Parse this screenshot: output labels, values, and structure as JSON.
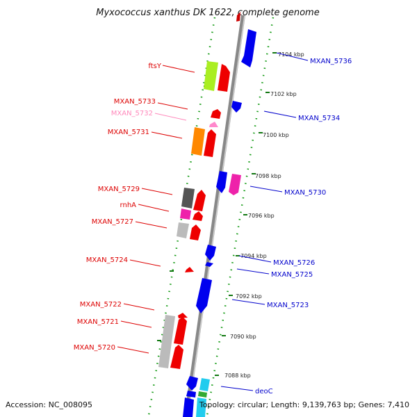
{
  "title": "Myxococcus xanthus DK 1622, complete genome",
  "footer": {
    "accession": "Accession: NC_008095",
    "summary": "Topology: circular; Length: 9,139,763 bp; Genes: 7,410"
  },
  "scale_labels": [
    "7104 kbp",
    "7102 kbp",
    "7100 kbp",
    "7098 kbp",
    "7096 kbp",
    "7094 kbp",
    "7092 kbp",
    "7090 kbp",
    "7088 kbp"
  ],
  "left_genes": [
    {
      "label": "ftsY",
      "color": "#dd0000"
    },
    {
      "label": "MXAN_5733",
      "color": "#dd0000"
    },
    {
      "label": "MXAN_5732",
      "color": "#ff88bb"
    },
    {
      "label": "MXAN_5731",
      "color": "#dd0000"
    },
    {
      "label": "MXAN_5729",
      "color": "#dd0000"
    },
    {
      "label": "rnhA",
      "color": "#dd0000"
    },
    {
      "label": "MXAN_5727",
      "color": "#dd0000"
    },
    {
      "label": "MXAN_5724",
      "color": "#dd0000"
    },
    {
      "label": "MXAN_5722",
      "color": "#dd0000"
    },
    {
      "label": "MXAN_5721",
      "color": "#dd0000"
    },
    {
      "label": "MXAN_5720",
      "color": "#dd0000"
    }
  ],
  "right_genes": [
    {
      "label": "MXAN_5736",
      "color": "#0000cc"
    },
    {
      "label": "MXAN_5734",
      "color": "#0000cc"
    },
    {
      "label": "MXAN_5730",
      "color": "#0000cc"
    },
    {
      "label": "MXAN_5726",
      "color": "#0000cc"
    },
    {
      "label": "MXAN_5725",
      "color": "#0000cc"
    },
    {
      "label": "MXAN_5723",
      "color": "#0000cc"
    },
    {
      "label": "deoC",
      "color": "#0000cc"
    }
  ],
  "colors": {
    "backbone": "#888888",
    "forward": "#ee0000",
    "reverse": "#0000ee",
    "dots": "#119911",
    "scale_tick": "#117711"
  }
}
